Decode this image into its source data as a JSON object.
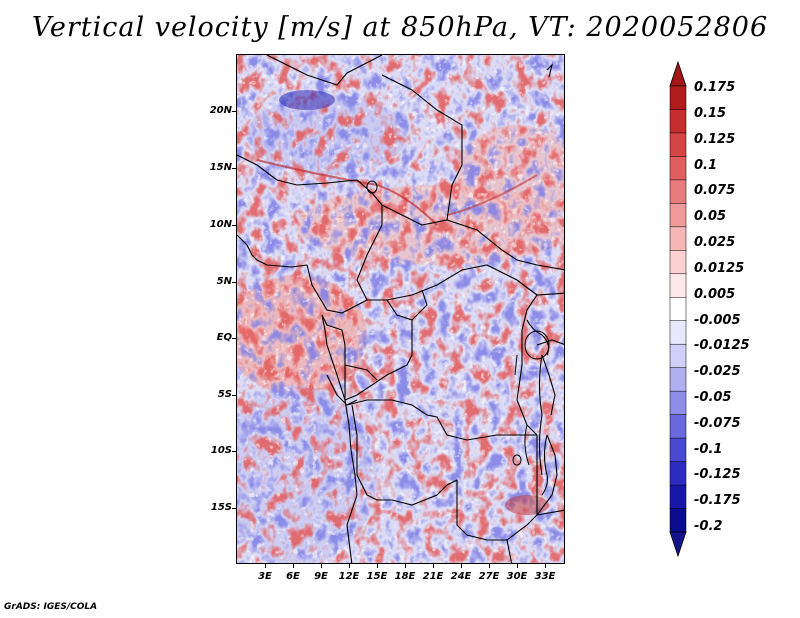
{
  "title": "Vertical velocity [m/s] at 850hPa, VT: 2020052806",
  "footer": "GrADS: IGES/COLA",
  "map": {
    "lat_labels": [
      "20N",
      "15N",
      "10N",
      "5N",
      "EQ",
      "5S",
      "10S",
      "15S"
    ],
    "lon_labels": [
      "3E",
      "6E",
      "9E",
      "12E",
      "15E",
      "18E",
      "21E",
      "24E",
      "27E",
      "30E",
      "33E"
    ]
  },
  "colorbar": {
    "labels": [
      "0.175",
      "0.15",
      "0.125",
      "0.1",
      "0.075",
      "0.05",
      "0.025",
      "0.0125",
      "0.005",
      "-0.005",
      "-0.0125",
      "-0.025",
      "-0.05",
      "-0.075",
      "-0.1",
      "-0.125",
      "-0.175",
      "-0.2"
    ],
    "colors": [
      "#b01c1c",
      "#c42e2e",
      "#d44646",
      "#e05e5e",
      "#e87c7c",
      "#f09a9a",
      "#f5b6b6",
      "#fad2d2",
      "#fde8e8",
      "#ffffff",
      "#e8e8fc",
      "#cfcff7",
      "#b0b0f0",
      "#8e8ee8",
      "#6a6ade",
      "#4a4ad0",
      "#2c2cc0",
      "#1818a8",
      "#0c0c90"
    ],
    "top_color": "#a01818",
    "bottom_color": "#14148a"
  }
}
